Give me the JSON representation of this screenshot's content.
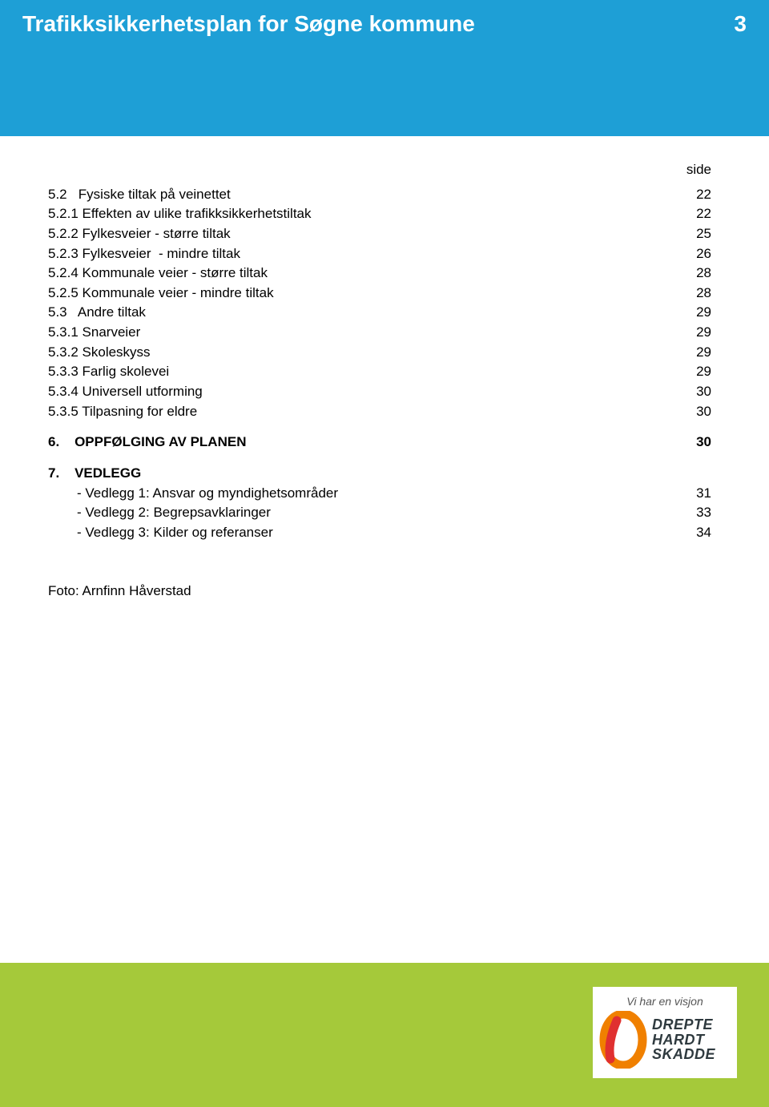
{
  "header": {
    "title": "Trafikksikkerhetsplan for Søgne kommune",
    "page_number": "3",
    "background_color": "#1e9fd6",
    "text_color": "#ffffff"
  },
  "side_label": "side",
  "toc": [
    {
      "label": "5.2   Fysiske tiltak på veinettet",
      "page": "22"
    },
    {
      "label": "5.2.1 Effekten av ulike trafikksikkerhetstiltak",
      "page": "22"
    },
    {
      "label": "5.2.2 Fylkesveier - større tiltak",
      "page": "25"
    },
    {
      "label": "5.2.3 Fylkesveier  - mindre tiltak",
      "page": "26"
    },
    {
      "label": "5.2.4 Kommunale veier - større tiltak",
      "page": "28"
    },
    {
      "label": "5.2.5 Kommunale veier - mindre tiltak",
      "page": "28"
    },
    {
      "label": "5.3   Andre tiltak",
      "page": "29"
    },
    {
      "label": "5.3.1 Snarveier",
      "page": "29"
    },
    {
      "label": "5.3.2 Skoleskyss",
      "page": "29"
    },
    {
      "label": "5.3.3 Farlig skolevei",
      "page": "29"
    },
    {
      "label": "5.3.4 Universell utforming",
      "page": "30"
    },
    {
      "label": "5.3.5 Tilpasning for eldre",
      "page": "30"
    }
  ],
  "section6": {
    "label": "6.    OPPFØLGING AV PLANEN",
    "page": "30"
  },
  "section7": {
    "label": "7.    VEDLEGG",
    "items": [
      {
        "label": "- Vedlegg 1: Ansvar og myndighetsområder",
        "page": "31"
      },
      {
        "label": "- Vedlegg 2: Begrepsavklaringer",
        "page": "33"
      },
      {
        "label": "- Vedlegg 3: Kilder og referanser",
        "page": "34"
      }
    ]
  },
  "photo_credit": "Foto: Arnfinn Håverstad",
  "footer": {
    "background_color": "#a5c93a",
    "logo": {
      "caption": "Vi har en visjon",
      "zero_fill": "#f08000",
      "zero_stroke": "#e03030",
      "words": [
        "DREPTE",
        "HARDT",
        "SKADDE"
      ]
    }
  }
}
